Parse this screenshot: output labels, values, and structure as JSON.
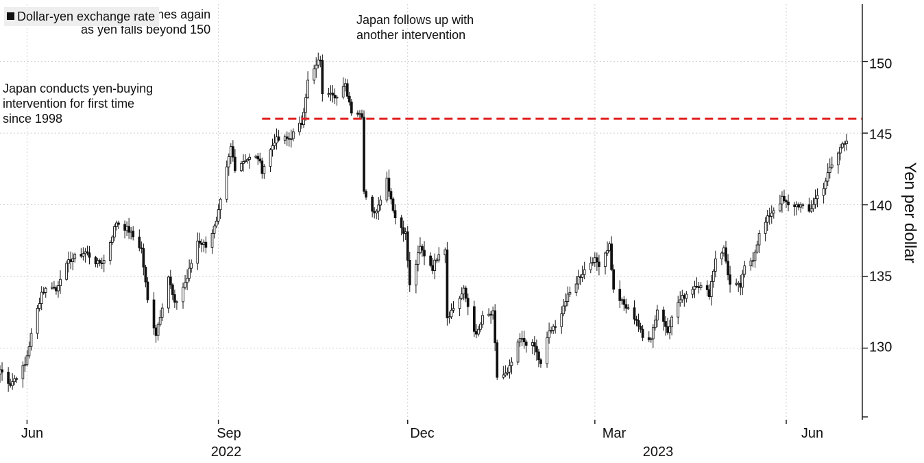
{
  "chart_data": {
    "type": "candlestick",
    "legend": {
      "label": "Dollar-yen exchange rate",
      "color": "#111111",
      "position": "top-left"
    },
    "ylabel": "Yen per dollar",
    "ylim": [
      125,
      154
    ],
    "yticks": [
      130,
      135,
      140,
      145,
      150
    ],
    "x_range": [
      "2022-05-19",
      "2023-06-30"
    ],
    "xticks": [
      {
        "date": "2022-06-01",
        "label": "Jun"
      },
      {
        "date": "2022-09-01",
        "label": "Sep",
        "year": "2022"
      },
      {
        "date": "2022-12-01",
        "label": "Dec"
      },
      {
        "date": "2023-03-01",
        "label": "Mar",
        "year": "2023"
      },
      {
        "date": "2023-06-01",
        "label": "Jun"
      }
    ],
    "grid": true,
    "reference_line": {
      "value": 146,
      "start": "2022-09-22",
      "color": "#e02020",
      "style": "dashed"
    },
    "annotations": [
      {
        "text": "Japan conducts yen-buying intervention for first time since 1998",
        "lines": [
          "Japan conducts yen-buying",
          "intervention for first time",
          "since 1998"
        ]
      },
      {
        "text": "Japan intervenes again as yen falls beyond 150",
        "lines": [
          "Japan intervenes again",
          "as yen falls beyond 150"
        ]
      },
      {
        "text": "Japan follows up with another intervention",
        "lines": [
          "Japan follows up with",
          "another intervention"
        ]
      }
    ],
    "close_anchors": [
      [
        "2022-05-19",
        128.5
      ],
      [
        "2022-05-24",
        127.5
      ],
      [
        "2022-05-31",
        128.8
      ],
      [
        "2022-06-03",
        130.9
      ],
      [
        "2022-06-08",
        133.9
      ],
      [
        "2022-06-13",
        134.4
      ],
      [
        "2022-06-15",
        134.0
      ],
      [
        "2022-06-17",
        135.0
      ],
      [
        "2022-06-22",
        136.2
      ],
      [
        "2022-06-29",
        136.7
      ],
      [
        "2022-07-05",
        135.9
      ],
      [
        "2022-07-08",
        136.1
      ],
      [
        "2022-07-14",
        138.8
      ],
      [
        "2022-07-20",
        138.2
      ],
      [
        "2022-07-26",
        136.9
      ],
      [
        "2022-07-29",
        133.3
      ],
      [
        "2022-08-02",
        131.0
      ],
      [
        "2022-08-08",
        135.0
      ],
      [
        "2022-08-11",
        133.0
      ],
      [
        "2022-08-17",
        134.9
      ],
      [
        "2022-08-22",
        137.5
      ],
      [
        "2022-08-26",
        137.2
      ],
      [
        "2022-08-31",
        138.7
      ],
      [
        "2022-09-02",
        140.2
      ],
      [
        "2022-09-07",
        144.0
      ],
      [
        "2022-09-09",
        142.6
      ],
      [
        "2022-09-14",
        143.2
      ],
      [
        "2022-09-20",
        143.3
      ],
      [
        "2022-09-22",
        142.4
      ],
      [
        "2022-09-28",
        144.5
      ],
      [
        "2022-10-05",
        144.6
      ],
      [
        "2022-10-11",
        145.7
      ],
      [
        "2022-10-14",
        148.6
      ],
      [
        "2022-10-20",
        150.2
      ],
      [
        "2022-10-21",
        147.6
      ],
      [
        "2022-10-25",
        148.0
      ],
      [
        "2022-10-28",
        147.5
      ],
      [
        "2022-11-01",
        148.3
      ],
      [
        "2022-11-04",
        146.6
      ],
      [
        "2022-11-09",
        146.3
      ],
      [
        "2022-11-10",
        141.0
      ],
      [
        "2022-11-15",
        139.3
      ],
      [
        "2022-11-21",
        141.8
      ],
      [
        "2022-11-25",
        139.1
      ],
      [
        "2022-11-30",
        138.0
      ],
      [
        "2022-12-02",
        134.3
      ],
      [
        "2022-12-07",
        137.0
      ],
      [
        "2022-12-13",
        135.6
      ],
      [
        "2022-12-16",
        136.7
      ],
      [
        "2022-12-19",
        137.0
      ],
      [
        "2022-12-20",
        132.2
      ],
      [
        "2022-12-23",
        132.8
      ],
      [
        "2022-12-28",
        134.0
      ],
      [
        "2023-01-03",
        130.8
      ],
      [
        "2023-01-06",
        132.1
      ],
      [
        "2023-01-11",
        132.4
      ],
      [
        "2023-01-13",
        128.0
      ],
      [
        "2023-01-18",
        128.2
      ],
      [
        "2023-01-24",
        130.6
      ],
      [
        "2023-01-31",
        130.1
      ],
      [
        "2023-02-03",
        128.8
      ],
      [
        "2023-02-07",
        131.2
      ],
      [
        "2023-02-10",
        131.4
      ],
      [
        "2023-02-14",
        133.0
      ],
      [
        "2023-02-21",
        134.9
      ],
      [
        "2023-02-28",
        136.2
      ],
      [
        "2023-03-03",
        135.9
      ],
      [
        "2023-03-08",
        137.2
      ],
      [
        "2023-03-10",
        134.0
      ],
      [
        "2023-03-15",
        133.0
      ],
      [
        "2023-03-21",
        132.0
      ],
      [
        "2023-03-24",
        130.7
      ],
      [
        "2023-03-28",
        130.8
      ],
      [
        "2023-03-31",
        132.7
      ],
      [
        "2023-04-05",
        131.3
      ],
      [
        "2023-04-10",
        133.2
      ],
      [
        "2023-04-14",
        133.8
      ],
      [
        "2023-04-19",
        134.5
      ],
      [
        "2023-04-25",
        133.8
      ],
      [
        "2023-04-28",
        136.3
      ],
      [
        "2023-05-02",
        136.9
      ],
      [
        "2023-05-05",
        134.4
      ],
      [
        "2023-05-10",
        134.3
      ],
      [
        "2023-05-12",
        135.6
      ],
      [
        "2023-05-16",
        136.3
      ],
      [
        "2023-05-19",
        137.9
      ],
      [
        "2023-05-24",
        139.3
      ],
      [
        "2023-05-30",
        140.4
      ],
      [
        "2023-06-02",
        139.9
      ],
      [
        "2023-06-07",
        140.0
      ],
      [
        "2023-06-12",
        139.5
      ],
      [
        "2023-06-15",
        140.4
      ],
      [
        "2023-06-19",
        141.3
      ],
      [
        "2023-06-22",
        142.5
      ],
      [
        "2023-06-26",
        143.6
      ],
      [
        "2023-06-28",
        144.3
      ],
      [
        "2023-06-30",
        144.6
      ]
    ]
  }
}
